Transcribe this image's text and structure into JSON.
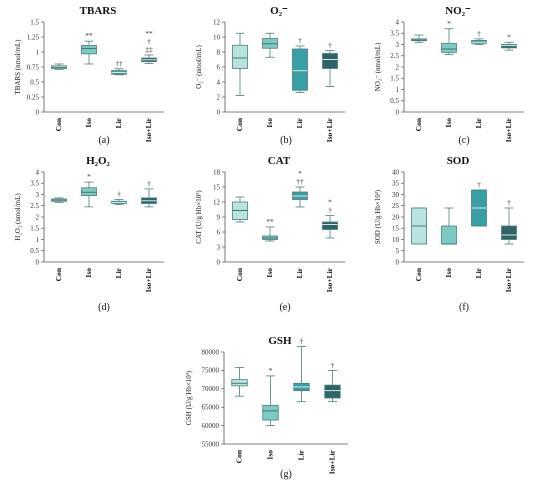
{
  "chart_data": [
    {
      "id": "a",
      "type": "box",
      "title": "TBARS",
      "ylabel": "TBARS (nmol/mL)",
      "tag": "(a)",
      "ylim": [
        0,
        1.5
      ],
      "yticks": [
        "0",
        "0.25",
        "0.5",
        "0.75",
        "1",
        "1.25",
        "1.5"
      ],
      "categories": [
        "Con",
        "Iso",
        "Lir",
        "Iso+Lir"
      ],
      "boxes": [
        {
          "min": 0.71,
          "q1": 0.72,
          "median": 0.74,
          "q3": 0.77,
          "max": 0.8,
          "sig": []
        },
        {
          "min": 0.8,
          "q1": 0.97,
          "median": 1.06,
          "q3": 1.11,
          "max": 1.18,
          "sig": [
            "**"
          ]
        },
        {
          "min": 0.62,
          "q1": 0.63,
          "median": 0.66,
          "q3": 0.69,
          "max": 0.72,
          "sig": [
            "††"
          ]
        },
        {
          "min": 0.81,
          "q1": 0.84,
          "median": 0.87,
          "q3": 0.9,
          "max": 0.95,
          "sig": [
            "**",
            "†",
            "‡‡"
          ]
        }
      ]
    },
    {
      "id": "b",
      "type": "box",
      "title": "O₂⁻",
      "ylabel": "O₂⁻ (nmol/mL)",
      "tag": "(b)",
      "ylim": [
        0,
        12
      ],
      "yticks": [
        "0",
        "2",
        "4",
        "6",
        "8",
        "10",
        "12"
      ],
      "categories": [
        "Con",
        "Iso",
        "Lir",
        "Iso+Lir"
      ],
      "boxes": [
        {
          "min": 2.2,
          "q1": 5.8,
          "median": 7.2,
          "q3": 8.9,
          "max": 10.5,
          "sig": []
        },
        {
          "min": 7.3,
          "q1": 8.5,
          "median": 9.1,
          "q3": 9.8,
          "max": 10.5,
          "sig": []
        },
        {
          "min": 2.6,
          "q1": 2.9,
          "median": 5.5,
          "q3": 8.4,
          "max": 8.8,
          "sig": [
            "†"
          ]
        },
        {
          "min": 3.4,
          "q1": 5.8,
          "median": 7.0,
          "q3": 7.8,
          "max": 8.2,
          "sig": [
            "†"
          ]
        }
      ]
    },
    {
      "id": "c",
      "type": "box",
      "title": "NO₂⁻",
      "ylabel": "NO₂⁻ (nmol/mL)",
      "tag": "(c)",
      "ylim": [
        0,
        4
      ],
      "yticks": [
        "0",
        "0.5",
        "1",
        "1.5",
        "2",
        "2.5",
        "3",
        "3.5",
        "4"
      ],
      "categories": [
        "Con",
        "Iso",
        "Lir",
        "Iso+Lir"
      ],
      "boxes": [
        {
          "min": 3.1,
          "q1": 3.17,
          "median": 3.2,
          "q3": 3.25,
          "max": 3.42,
          "sig": []
        },
        {
          "min": 2.55,
          "q1": 2.65,
          "median": 2.8,
          "q3": 3.05,
          "max": 3.7,
          "sig": [
            "*"
          ]
        },
        {
          "min": 3.0,
          "q1": 3.05,
          "median": 3.1,
          "q3": 3.18,
          "max": 3.25,
          "sig": [
            "†"
          ]
        },
        {
          "min": 2.75,
          "q1": 2.85,
          "median": 2.95,
          "q3": 3.0,
          "max": 3.1,
          "sig": [
            "*"
          ]
        }
      ]
    },
    {
      "id": "d",
      "type": "box",
      "title": "H₂O₂",
      "ylabel": "H₂O₂ (nmol/mL)",
      "tag": "(d)",
      "ylim": [
        0,
        4
      ],
      "yticks": [
        "0",
        "0.5",
        "1",
        "1.5",
        "2",
        "2.5",
        "3",
        "3.5",
        "4"
      ],
      "categories": [
        "Con",
        "Iso",
        "Lir",
        "Iso+Lir"
      ],
      "boxes": [
        {
          "min": 2.65,
          "q1": 2.7,
          "median": 2.75,
          "q3": 2.8,
          "max": 2.85,
          "sig": []
        },
        {
          "min": 2.45,
          "q1": 2.95,
          "median": 3.1,
          "q3": 3.3,
          "max": 3.55,
          "sig": [
            "*"
          ]
        },
        {
          "min": 2.55,
          "q1": 2.6,
          "median": 2.65,
          "q3": 2.7,
          "max": 2.78,
          "sig": [
            "†"
          ]
        },
        {
          "min": 2.45,
          "q1": 2.6,
          "median": 2.72,
          "q3": 2.85,
          "max": 3.25,
          "sig": [
            "†"
          ]
        }
      ]
    },
    {
      "id": "e",
      "type": "box",
      "title": "CAT",
      "ylabel": "CAT (U/g Hb×10³)",
      "tag": "(e)",
      "ylim": [
        0,
        18
      ],
      "yticks": [
        "0",
        "3",
        "6",
        "9",
        "12",
        "15",
        "18"
      ],
      "categories": [
        "Con",
        "Iso",
        "Lir",
        "Iso+Lir"
      ],
      "boxes": [
        {
          "min": 8.0,
          "q1": 8.5,
          "median": 10.3,
          "q3": 12.0,
          "max": 13.0,
          "sig": []
        },
        {
          "min": 4.2,
          "q1": 4.5,
          "median": 4.8,
          "q3": 5.2,
          "max": 7.0,
          "sig": [
            "**"
          ]
        },
        {
          "min": 11.0,
          "q1": 12.5,
          "median": 13.2,
          "q3": 14.0,
          "max": 15.0,
          "sig": [
            "*",
            "††"
          ]
        },
        {
          "min": 4.8,
          "q1": 6.5,
          "median": 7.5,
          "q3": 8.0,
          "max": 9.3,
          "sig": [
            "*",
            "†"
          ]
        }
      ]
    },
    {
      "id": "f",
      "type": "box",
      "title": "SOD",
      "ylabel": "SOD (U/g Hb×10³)",
      "tag": "(f)",
      "ylim": [
        0,
        40
      ],
      "yticks": [
        "0",
        "5",
        "10",
        "15",
        "20",
        "25",
        "30",
        "35",
        "40"
      ],
      "categories": [
        "Con",
        "Iso",
        "Lir",
        "Iso+Lir"
      ],
      "boxes": [
        {
          "min": 8,
          "q1": 8,
          "median": 16,
          "q3": 24,
          "max": 24,
          "sig": []
        },
        {
          "min": 8,
          "q1": 8,
          "median": 8,
          "q3": 16,
          "max": 24,
          "sig": []
        },
        {
          "min": 16,
          "q1": 16,
          "median": 24,
          "q3": 32,
          "max": 32,
          "sig": [
            "†"
          ]
        },
        {
          "min": 8,
          "q1": 10,
          "median": 12,
          "q3": 16,
          "max": 24,
          "sig": [
            "†"
          ]
        }
      ]
    },
    {
      "id": "g",
      "type": "box",
      "title": "GSH",
      "ylabel": "GSH (U/g Hb×10³)",
      "tag": "(g)",
      "ylim": [
        55000,
        80000
      ],
      "yticks": [
        "55000",
        "60000",
        "65000",
        "70000",
        "75000",
        "80000"
      ],
      "categories": [
        "Con",
        "Iso",
        "Lir",
        "Iso+Lir"
      ],
      "boxes": [
        {
          "min": 68000,
          "q1": 70800,
          "median": 71500,
          "q3": 72500,
          "max": 75800,
          "sig": []
        },
        {
          "min": 60000,
          "q1": 61500,
          "median": 64000,
          "q3": 65500,
          "max": 73500,
          "sig": [
            "*"
          ]
        },
        {
          "min": 66500,
          "q1": 69500,
          "median": 70500,
          "q3": 71500,
          "max": 81500,
          "sig": [
            "†"
          ]
        },
        {
          "min": 66500,
          "q1": 67500,
          "median": 69500,
          "q3": 71000,
          "max": 75000,
          "sig": [
            "†"
          ]
        }
      ]
    }
  ],
  "colors": {
    "Con": "#b9e3df",
    "Iso": "#7ccac3",
    "Lir": "#3a9ea5",
    "Iso+Lir": "#2e6468",
    "stroke": "#6f9f9c",
    "axis": "#555555"
  }
}
